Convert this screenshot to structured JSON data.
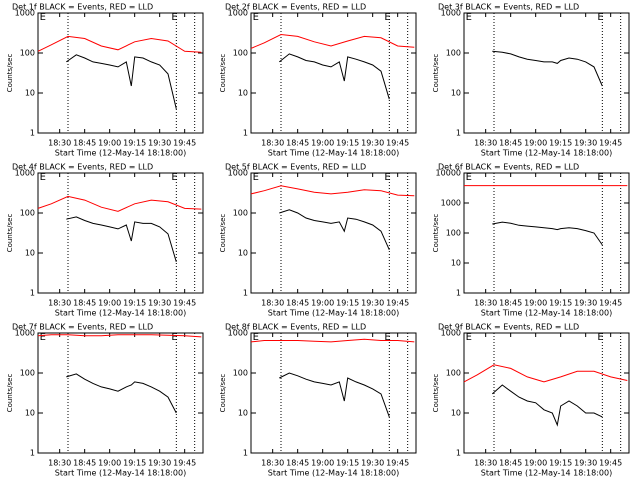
{
  "chart_data": [
    {
      "type": "line",
      "title": "Det 1f BLACK = Events, RED = LLD",
      "xlabel": "Start Time (12-May-14 18:18:00)",
      "ylabel": "Counts/sec",
      "log_y": true,
      "xlim": [
        "18:17",
        "19:56"
      ],
      "xticks": [
        "18:30",
        "18:45",
        "19:00",
        "19:15",
        "19:30",
        "19:45"
      ],
      "ylim": [
        1,
        1000
      ],
      "yticks": [
        1,
        10,
        100,
        1000
      ],
      "vlines": [
        "18:35",
        "19:40",
        "19:51"
      ],
      "annotations": [
        {
          "text": "E",
          "x": "18:18"
        },
        {
          "text": "E",
          "x": "19:37"
        }
      ],
      "series": [
        {
          "color": "#ff0000",
          "x": [
            "18:17",
            "18:25",
            "18:35",
            "18:45",
            "18:55",
            "19:05",
            "19:15",
            "19:25",
            "19:35",
            "19:45",
            "19:55"
          ],
          "values": [
            110,
            160,
            260,
            230,
            150,
            120,
            190,
            230,
            200,
            110,
            105
          ]
        },
        {
          "color": "#000000",
          "x": [
            "18:34",
            "18:40",
            "18:45",
            "18:50",
            "18:55",
            "19:00",
            "19:05",
            "19:10",
            "19:13",
            "19:15",
            "19:20",
            "19:25",
            "19:30",
            "19:35",
            "19:40"
          ],
          "values": [
            60,
            90,
            75,
            60,
            55,
            50,
            45,
            60,
            15,
            80,
            75,
            60,
            50,
            30,
            4
          ]
        }
      ]
    },
    {
      "type": "line",
      "title": "Det 2f BLACK = Events, RED = LLD",
      "xlabel": "Start Time (12-May-14 18:18:00)",
      "ylabel": "Counts/sec",
      "log_y": true,
      "xlim": [
        "18:17",
        "19:56"
      ],
      "xticks": [
        "18:30",
        "18:45",
        "19:00",
        "19:15",
        "19:30",
        "19:45"
      ],
      "ylim": [
        1,
        1000
      ],
      "yticks": [
        1,
        10,
        100,
        1000
      ],
      "vlines": [
        "18:35",
        "19:40",
        "19:51"
      ],
      "annotations": [
        {
          "text": "E",
          "x": "18:18"
        },
        {
          "text": "E",
          "x": "19:37"
        }
      ],
      "series": [
        {
          "color": "#ff0000",
          "x": [
            "18:17",
            "18:25",
            "18:35",
            "18:45",
            "18:55",
            "19:05",
            "19:15",
            "19:25",
            "19:35",
            "19:45",
            "19:55"
          ],
          "values": [
            130,
            180,
            290,
            260,
            190,
            150,
            200,
            260,
            240,
            150,
            140
          ]
        },
        {
          "color": "#000000",
          "x": [
            "18:34",
            "18:40",
            "18:45",
            "18:50",
            "18:55",
            "19:00",
            "19:05",
            "19:10",
            "19:13",
            "19:15",
            "19:20",
            "19:25",
            "19:30",
            "19:35",
            "19:40"
          ],
          "values": [
            60,
            95,
            80,
            65,
            60,
            50,
            45,
            60,
            20,
            80,
            70,
            60,
            50,
            35,
            7
          ]
        }
      ]
    },
    {
      "type": "line",
      "title": "Det 3f BLACK = Events, RED = LLD",
      "xlabel": "Start Time (12-May-14 18:18:00)",
      "ylabel": "Counts/sec",
      "log_y": true,
      "xlim": [
        "18:17",
        "19:56"
      ],
      "xticks": [
        "18:30",
        "18:45",
        "19:00",
        "19:15",
        "19:30",
        "19:45"
      ],
      "ylim": [
        1,
        1000
      ],
      "yticks": [
        1,
        10,
        100,
        1000
      ],
      "vlines": [
        "18:35",
        "19:40",
        "19:51"
      ],
      "annotations": [
        {
          "text": "E",
          "x": "18:18"
        },
        {
          "text": "E",
          "x": "19:37"
        }
      ],
      "series": [
        {
          "color": "#000000",
          "x": [
            "18:34",
            "18:40",
            "18:45",
            "18:50",
            "18:55",
            "19:00",
            "19:05",
            "19:10",
            "19:13",
            "19:15",
            "19:20",
            "19:25",
            "19:30",
            "19:35",
            "19:40"
          ],
          "values": [
            110,
            105,
            95,
            80,
            70,
            65,
            60,
            60,
            55,
            65,
            75,
            70,
            60,
            45,
            15
          ]
        }
      ]
    },
    {
      "type": "line",
      "title": "Det 4f BLACK = Events, RED = LLD",
      "xlabel": "Start Time (12-May-14 18:18:00)",
      "ylabel": "Counts/sec",
      "log_y": true,
      "xlim": [
        "18:17",
        "19:56"
      ],
      "xticks": [
        "18:30",
        "18:45",
        "19:00",
        "19:15",
        "19:30",
        "19:45"
      ],
      "ylim": [
        1,
        1000
      ],
      "yticks": [
        1,
        10,
        100,
        1000
      ],
      "vlines": [
        "18:35",
        "19:40",
        "19:51"
      ],
      "annotations": [
        {
          "text": "E",
          "x": "18:18"
        },
        {
          "text": "E",
          "x": "19:37"
        }
      ],
      "series": [
        {
          "color": "#ff0000",
          "x": [
            "18:17",
            "18:25",
            "18:35",
            "18:45",
            "18:55",
            "19:05",
            "19:15",
            "19:25",
            "19:35",
            "19:45",
            "19:55"
          ],
          "values": [
            130,
            170,
            260,
            210,
            140,
            110,
            170,
            210,
            190,
            130,
            125
          ]
        },
        {
          "color": "#000000",
          "x": [
            "18:34",
            "18:40",
            "18:45",
            "18:50",
            "18:55",
            "19:00",
            "19:05",
            "19:10",
            "19:13",
            "19:15",
            "19:20",
            "19:25",
            "19:30",
            "19:35",
            "19:40"
          ],
          "values": [
            70,
            80,
            65,
            55,
            50,
            45,
            40,
            50,
            20,
            60,
            55,
            55,
            45,
            30,
            6
          ]
        }
      ]
    },
    {
      "type": "line",
      "title": "Det 5f BLACK = Events, RED = LLD",
      "xlabel": "Start Time (12-May-14 18:18:00)",
      "ylabel": "Counts/sec",
      "log_y": true,
      "xlim": [
        "18:17",
        "19:56"
      ],
      "xticks": [
        "18:30",
        "18:45",
        "19:00",
        "19:15",
        "19:30",
        "19:45"
      ],
      "ylim": [
        1,
        1000
      ],
      "yticks": [
        1,
        10,
        100,
        1000
      ],
      "vlines": [
        "18:35",
        "19:40",
        "19:51"
      ],
      "annotations": [
        {
          "text": "E",
          "x": "18:18"
        },
        {
          "text": "E",
          "x": "19:37"
        }
      ],
      "series": [
        {
          "color": "#ff0000",
          "x": [
            "18:17",
            "18:25",
            "18:35",
            "18:45",
            "18:55",
            "19:05",
            "19:15",
            "19:25",
            "19:35",
            "19:45",
            "19:55"
          ],
          "values": [
            300,
            360,
            480,
            400,
            330,
            300,
            330,
            380,
            360,
            280,
            270
          ]
        },
        {
          "color": "#000000",
          "x": [
            "18:34",
            "18:40",
            "18:45",
            "18:50",
            "18:55",
            "19:00",
            "19:05",
            "19:10",
            "19:13",
            "19:15",
            "19:20",
            "19:25",
            "19:30",
            "19:35",
            "19:40"
          ],
          "values": [
            100,
            120,
            100,
            75,
            65,
            60,
            55,
            60,
            35,
            75,
            70,
            60,
            50,
            35,
            12
          ]
        }
      ]
    },
    {
      "type": "line",
      "title": "Det 6f BLACK = Events, RED = LLD",
      "xlabel": "Start Time (12-May-14 18:18:00)",
      "ylabel": "Counts/sec",
      "log_y": true,
      "xlim": [
        "18:17",
        "19:56"
      ],
      "xticks": [
        "18:30",
        "18:45",
        "19:00",
        "19:15",
        "19:30",
        "19:45"
      ],
      "ylim": [
        1,
        10000
      ],
      "yticks": [
        1,
        10,
        100,
        1000,
        10000
      ],
      "vlines": [
        "18:35",
        "19:40",
        "19:51"
      ],
      "annotations": [
        {
          "text": "E",
          "x": "18:18"
        },
        {
          "text": "E",
          "x": "19:37"
        }
      ],
      "series": [
        {
          "color": "#ff0000",
          "x": [
            "18:17",
            "18:25",
            "18:35",
            "18:45",
            "18:55",
            "19:05",
            "19:15",
            "19:25",
            "19:35",
            "19:45",
            "19:55"
          ],
          "values": [
            3800,
            3800,
            3800,
            3800,
            3800,
            3800,
            3800,
            3800,
            3800,
            3800,
            3800
          ]
        },
        {
          "color": "#000000",
          "x": [
            "18:34",
            "18:40",
            "18:45",
            "18:50",
            "18:55",
            "19:00",
            "19:05",
            "19:10",
            "19:13",
            "19:15",
            "19:20",
            "19:25",
            "19:30",
            "19:35",
            "19:40"
          ],
          "values": [
            200,
            230,
            210,
            180,
            170,
            160,
            150,
            140,
            130,
            140,
            150,
            140,
            120,
            100,
            40
          ]
        }
      ]
    },
    {
      "type": "line",
      "title": "Det 7f BLACK = Events, RED = LLD",
      "xlabel": "Start Time (12-May-14 18:18:00)",
      "ylabel": "Counts/sec",
      "log_y": true,
      "xlim": [
        "18:17",
        "19:56"
      ],
      "xticks": [
        "18:30",
        "18:45",
        "19:00",
        "19:15",
        "19:30",
        "19:45"
      ],
      "ylim": [
        1,
        1000
      ],
      "yticks": [
        1,
        10,
        100,
        1000
      ],
      "vlines": [
        "18:35",
        "19:40",
        "19:51"
      ],
      "annotations": [
        {
          "text": "E",
          "x": "18:18"
        },
        {
          "text": "E",
          "x": "19:37"
        }
      ],
      "series": [
        {
          "color": "#ff0000",
          "x": [
            "18:17",
            "18:25",
            "18:35",
            "18:45",
            "18:55",
            "19:05",
            "19:15",
            "19:25",
            "19:35",
            "19:45",
            "19:55"
          ],
          "values": [
            850,
            900,
            900,
            850,
            850,
            900,
            900,
            900,
            880,
            850,
            800
          ]
        },
        {
          "color": "#000000",
          "x": [
            "18:34",
            "18:40",
            "18:45",
            "18:50",
            "18:55",
            "19:00",
            "19:05",
            "19:10",
            "19:13",
            "19:15",
            "19:20",
            "19:25",
            "19:30",
            "19:35",
            "19:40"
          ],
          "values": [
            80,
            95,
            70,
            55,
            45,
            40,
            35,
            45,
            50,
            60,
            55,
            45,
            35,
            25,
            10
          ]
        }
      ]
    },
    {
      "type": "line",
      "title": "Det 8f BLACK = Events, RED = LLD",
      "xlabel": "Start Time (12-May-14 18:18:00)",
      "ylabel": "Counts/sec",
      "log_y": true,
      "xlim": [
        "18:17",
        "19:56"
      ],
      "xticks": [
        "18:30",
        "18:45",
        "19:00",
        "19:15",
        "19:30",
        "19:45"
      ],
      "ylim": [
        1,
        1000
      ],
      "yticks": [
        1,
        10,
        100,
        1000
      ],
      "vlines": [
        "18:35",
        "19:40",
        "19:51"
      ],
      "annotations": [
        {
          "text": "E",
          "x": "18:18"
        },
        {
          "text": "E",
          "x": "19:37"
        }
      ],
      "series": [
        {
          "color": "#ff0000",
          "x": [
            "18:17",
            "18:25",
            "18:35",
            "18:45",
            "18:55",
            "19:05",
            "19:15",
            "19:25",
            "19:35",
            "19:45",
            "19:55"
          ],
          "values": [
            600,
            650,
            650,
            650,
            620,
            600,
            650,
            700,
            650,
            650,
            600
          ]
        },
        {
          "color": "#000000",
          "x": [
            "18:34",
            "18:40",
            "18:45",
            "18:50",
            "18:55",
            "19:00",
            "19:05",
            "19:10",
            "19:13",
            "19:15",
            "19:20",
            "19:25",
            "19:30",
            "19:35",
            "19:40"
          ],
          "values": [
            75,
            100,
            85,
            70,
            60,
            55,
            50,
            60,
            20,
            75,
            60,
            50,
            40,
            30,
            8
          ]
        }
      ]
    },
    {
      "type": "line",
      "title": "Det 9f BLACK = Events, RED = LLD",
      "xlabel": "Start Time (12-May-14 18:18:00)",
      "ylabel": "Counts/sec",
      "log_y": true,
      "xlim": [
        "18:17",
        "19:56"
      ],
      "xticks": [
        "18:30",
        "18:45",
        "19:00",
        "19:15",
        "19:30",
        "19:45"
      ],
      "ylim": [
        1,
        1000
      ],
      "yticks": [
        1,
        10,
        100,
        1000
      ],
      "vlines": [
        "18:35",
        "19:40",
        "19:51"
      ],
      "annotations": [
        {
          "text": "E",
          "x": "18:18"
        },
        {
          "text": "E",
          "x": "19:37"
        }
      ],
      "series": [
        {
          "color": "#ff0000",
          "x": [
            "18:17",
            "18:25",
            "18:35",
            "18:45",
            "18:55",
            "19:05",
            "19:15",
            "19:25",
            "19:35",
            "19:45",
            "19:55"
          ],
          "values": [
            60,
            90,
            160,
            130,
            80,
            60,
            80,
            110,
            110,
            80,
            65
          ]
        },
        {
          "color": "#000000",
          "x": [
            "18:34",
            "18:40",
            "18:45",
            "18:50",
            "18:55",
            "19:00",
            "19:05",
            "19:10",
            "19:13",
            "19:15",
            "19:20",
            "19:25",
            "19:30",
            "19:35",
            "19:40"
          ],
          "values": [
            30,
            50,
            35,
            25,
            20,
            18,
            12,
            10,
            5,
            15,
            20,
            15,
            10,
            10,
            8
          ]
        }
      ]
    }
  ]
}
